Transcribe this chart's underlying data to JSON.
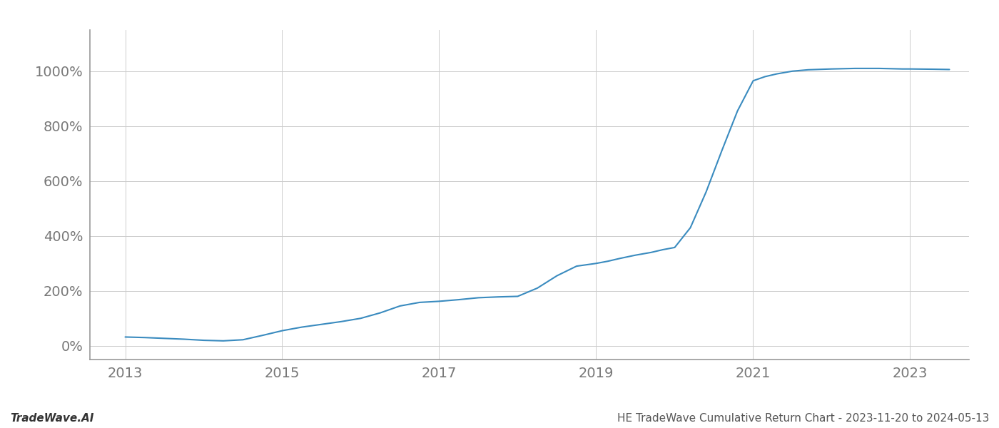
{
  "x": [
    2013.0,
    2013.25,
    2013.5,
    2013.75,
    2014.0,
    2014.25,
    2014.5,
    2014.75,
    2015.0,
    2015.25,
    2015.5,
    2015.75,
    2016.0,
    2016.25,
    2016.5,
    2016.75,
    2017.0,
    2017.25,
    2017.5,
    2017.75,
    2018.0,
    2018.25,
    2018.5,
    2018.75,
    2019.0,
    2019.15,
    2019.3,
    2019.5,
    2019.7,
    2019.85,
    2020.0,
    2020.2,
    2020.4,
    2020.6,
    2020.8,
    2021.0,
    2021.15,
    2021.3,
    2021.5,
    2021.7,
    2022.0,
    2022.3,
    2022.6,
    2022.9,
    2023.0,
    2023.3,
    2023.5
  ],
  "y": [
    32,
    30,
    27,
    24,
    20,
    18,
    22,
    38,
    55,
    68,
    78,
    88,
    100,
    120,
    145,
    158,
    162,
    168,
    175,
    178,
    180,
    210,
    255,
    290,
    300,
    308,
    318,
    330,
    340,
    350,
    358,
    430,
    560,
    710,
    855,
    965,
    980,
    990,
    1000,
    1005,
    1008,
    1010,
    1010,
    1008,
    1008,
    1007,
    1006
  ],
  "line_color": "#3a8bbf",
  "line_width": 1.5,
  "background_color": "#ffffff",
  "grid_color": "#cccccc",
  "xticks": [
    2013,
    2015,
    2017,
    2019,
    2021,
    2023
  ],
  "yticks": [
    0,
    200,
    400,
    600,
    800,
    1000
  ],
  "xlim": [
    2012.55,
    2023.75
  ],
  "ylim": [
    -50,
    1150
  ],
  "title": "HE TradeWave Cumulative Return Chart - 2023-11-20 to 2024-05-13",
  "bottom_left_text": "TradeWave.AI",
  "tick_fontsize": 14,
  "label_fontsize": 11,
  "spine_color": "#999999"
}
